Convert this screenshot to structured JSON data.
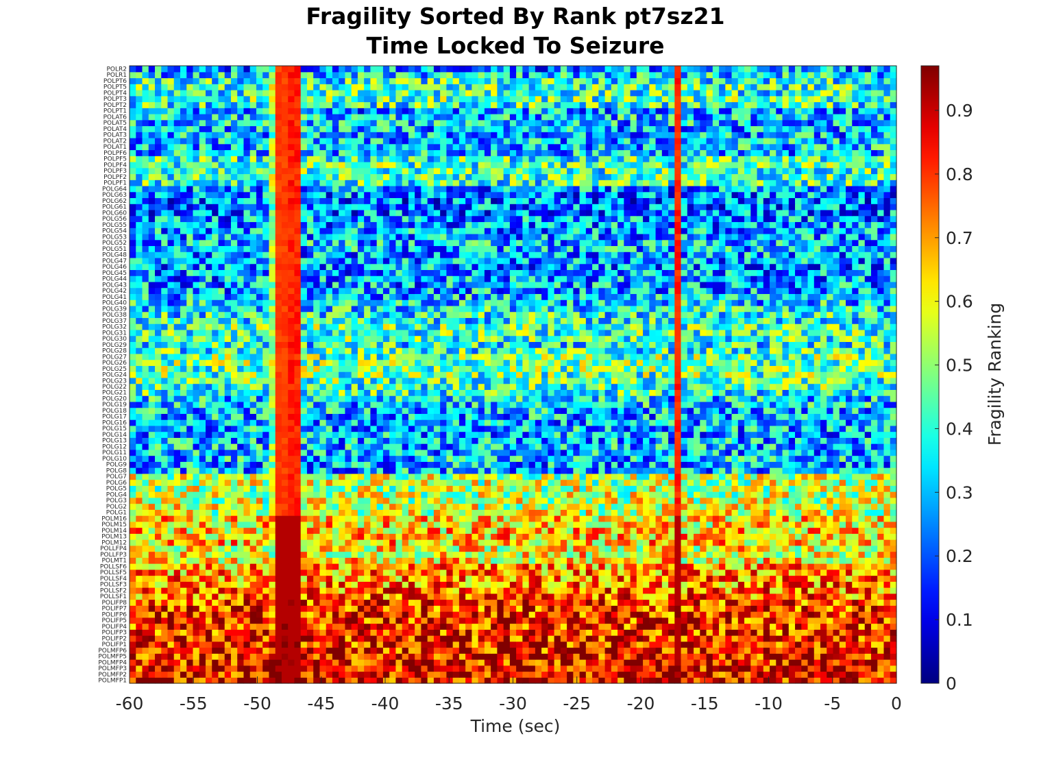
{
  "chart_data": {
    "type": "heatmap",
    "title": [
      "Fragility Sorted By Rank pt7sz21",
      "Time Locked To Seizure"
    ],
    "xlabel": "Time (sec)",
    "ylabel": "",
    "xlim": [
      -60,
      0
    ],
    "xticks": [
      -60,
      -55,
      -50,
      -45,
      -40,
      -35,
      -30,
      -25,
      -20,
      -15,
      -10,
      -5,
      0
    ],
    "colorbar": {
      "label": "Fragility Ranking",
      "colormap": "jet",
      "range": [
        0,
        0.97
      ],
      "ticks": [
        0,
        0.1,
        0.2,
        0.3,
        0.4,
        0.5,
        0.6,
        0.7,
        0.8,
        0.9
      ]
    },
    "time_window_count": 121,
    "channels": [
      "POLMFP1",
      "POLMFP2",
      "POLMFP3",
      "POLMFP4",
      "POLMFP5",
      "POLMFP6",
      "POLIFP1",
      "POLIFP2",
      "POLIFP3",
      "POLIFP4",
      "POLIFP5",
      "POLIFP6",
      "POLIFP7",
      "POLIFP8",
      "POLLSF1",
      "POLLSF2",
      "POLLSF3",
      "POLLSF4",
      "POLLSF5",
      "POLLSF6",
      "POLMT1",
      "POLLFP3",
      "POLLFP4",
      "POLM12",
      "POLM13",
      "POLM14",
      "POLM15",
      "POLM16",
      "POLG1",
      "POLG2",
      "POLG3",
      "POLG4",
      "POLG5",
      "POLG6",
      "POLG7",
      "POLG8",
      "POLG9",
      "POLG10",
      "POLG11",
      "POLG12",
      "POLG13",
      "POLG14",
      "POLG15",
      "POLG16",
      "POLG17",
      "POLG18",
      "POLG19",
      "POLG20",
      "POLG21",
      "POLG22",
      "POLG23",
      "POLG24",
      "POLG25",
      "POLG26",
      "POLG27",
      "POLG28",
      "POLG29",
      "POLG30",
      "POLG31",
      "POLG32",
      "POLG37",
      "POLG38",
      "POLG39",
      "POLG40",
      "POLG41",
      "POLG42",
      "POLG43",
      "POLG44",
      "POLG45",
      "POLG46",
      "POLG47",
      "POLG48",
      "POLG51",
      "POLG52",
      "POLG53",
      "POLG54",
      "POLG55",
      "POLG56",
      "POLG60",
      "POLG61",
      "POLG62",
      "POLG63",
      "POLG64",
      "POLPF1",
      "POLPF2",
      "POLPF3",
      "POLPF4",
      "POLPF5",
      "POLPF6",
      "POLAT1",
      "POLAT2",
      "POLAT3",
      "POLAT4",
      "POLAT5",
      "POLAT6",
      "POLPT1",
      "POLPT2",
      "POLPT3",
      "POLPT4",
      "POLPT5",
      "POLPT6",
      "POLR1",
      "POLR2"
    ],
    "channel_mean_fragility": [
      0.86,
      0.86,
      0.85,
      0.85,
      0.84,
      0.84,
      0.83,
      0.83,
      0.82,
      0.82,
      0.82,
      0.81,
      0.81,
      0.8,
      0.75,
      0.74,
      0.73,
      0.72,
      0.71,
      0.7,
      0.62,
      0.61,
      0.61,
      0.66,
      0.66,
      0.65,
      0.64,
      0.64,
      0.56,
      0.56,
      0.55,
      0.55,
      0.54,
      0.54,
      0.53,
      0.3,
      0.29,
      0.31,
      0.3,
      0.31,
      0.3,
      0.29,
      0.3,
      0.29,
      0.3,
      0.31,
      0.32,
      0.33,
      0.4,
      0.42,
      0.44,
      0.45,
      0.46,
      0.47,
      0.46,
      0.4,
      0.38,
      0.42,
      0.43,
      0.44,
      0.39,
      0.38,
      0.36,
      0.33,
      0.31,
      0.29,
      0.28,
      0.27,
      0.26,
      0.26,
      0.27,
      0.28,
      0.3,
      0.31,
      0.29,
      0.28,
      0.27,
      0.27,
      0.24,
      0.24,
      0.23,
      0.25,
      0.27,
      0.41,
      0.42,
      0.42,
      0.43,
      0.41,
      0.3,
      0.32,
      0.31,
      0.29,
      0.3,
      0.31,
      0.32,
      0.28,
      0.4,
      0.43,
      0.41,
      0.42,
      0.4,
      0.33,
      0.27
    ],
    "high_fragility_time_bands_sec": [
      -47.5,
      -17
    ]
  }
}
